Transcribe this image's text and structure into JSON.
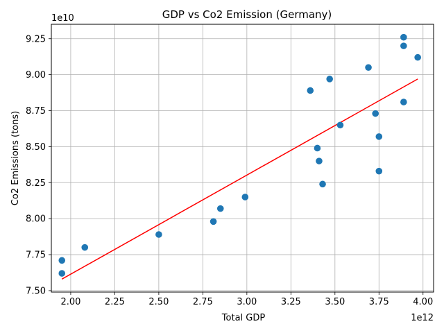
{
  "chart_data": {
    "type": "scatter",
    "title": "GDP vs Co2 Emission (Germany)",
    "xlabel": "Total GDP",
    "ylabel": "Co2 Emissions (tons)",
    "x_offset_label": "1e12",
    "y_offset_label": "1e10",
    "xlim": [
      1.89,
      4.06
    ],
    "ylim": [
      7.49,
      9.35
    ],
    "x_ticks": [
      2.0,
      2.25,
      2.5,
      2.75,
      3.0,
      3.25,
      3.5,
      3.75,
      4.0
    ],
    "x_tick_labels": [
      "2.00",
      "2.25",
      "2.50",
      "2.75",
      "3.00",
      "3.25",
      "3.50",
      "3.75",
      "4.00"
    ],
    "y_ticks": [
      7.5,
      7.75,
      8.0,
      8.25,
      8.5,
      8.75,
      9.0,
      9.25
    ],
    "y_tick_labels": [
      "7.50",
      "7.75",
      "8.00",
      "8.25",
      "8.50",
      "8.75",
      "9.00",
      "9.25"
    ],
    "grid": true,
    "colors": {
      "points": "#1f77b4",
      "trend": "#ff0000",
      "grid": "#b0b0b0"
    },
    "points": {
      "x": [
        1.95,
        1.95,
        2.08,
        2.5,
        2.81,
        2.85,
        2.99,
        3.36,
        3.4,
        3.41,
        3.43,
        3.47,
        3.53,
        3.69,
        3.73,
        3.75,
        3.75,
        3.89,
        3.89,
        3.89,
        3.97
      ],
      "y": [
        7.62,
        7.71,
        7.8,
        7.89,
        7.98,
        8.07,
        8.15,
        8.89,
        8.49,
        8.4,
        8.24,
        8.97,
        8.65,
        9.05,
        8.73,
        8.57,
        8.33,
        9.26,
        9.2,
        8.81,
        9.12
      ]
    },
    "trend_line": {
      "x": [
        1.95,
        3.97
      ],
      "y": [
        7.58,
        8.97
      ]
    }
  }
}
